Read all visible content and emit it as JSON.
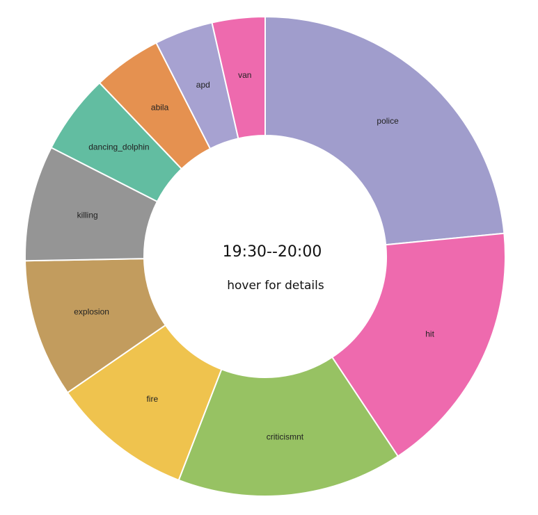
{
  "center": {
    "title": "19:30--20:00",
    "subtitle": "hover for details"
  },
  "chart_data": {
    "type": "pie",
    "variant": "donut",
    "categories": [
      "police",
      "hit",
      "criticismnt",
      "fire",
      "explosion",
      "killing",
      "dancing_dolphin",
      "abila",
      "apd",
      "van"
    ],
    "values": [
      24.4,
      17.9,
      15.8,
      9.9,
      9.7,
      8.1,
      5.6,
      4.8,
      4.1,
      3.7
    ],
    "colors": [
      "#a09dcc",
      "#ee6aae",
      "#97c263",
      "#efc34e",
      "#c29c5e",
      "#959595",
      "#62bda1",
      "#e59150",
      "#a7a2d1",
      "#ee6aae"
    ]
  }
}
